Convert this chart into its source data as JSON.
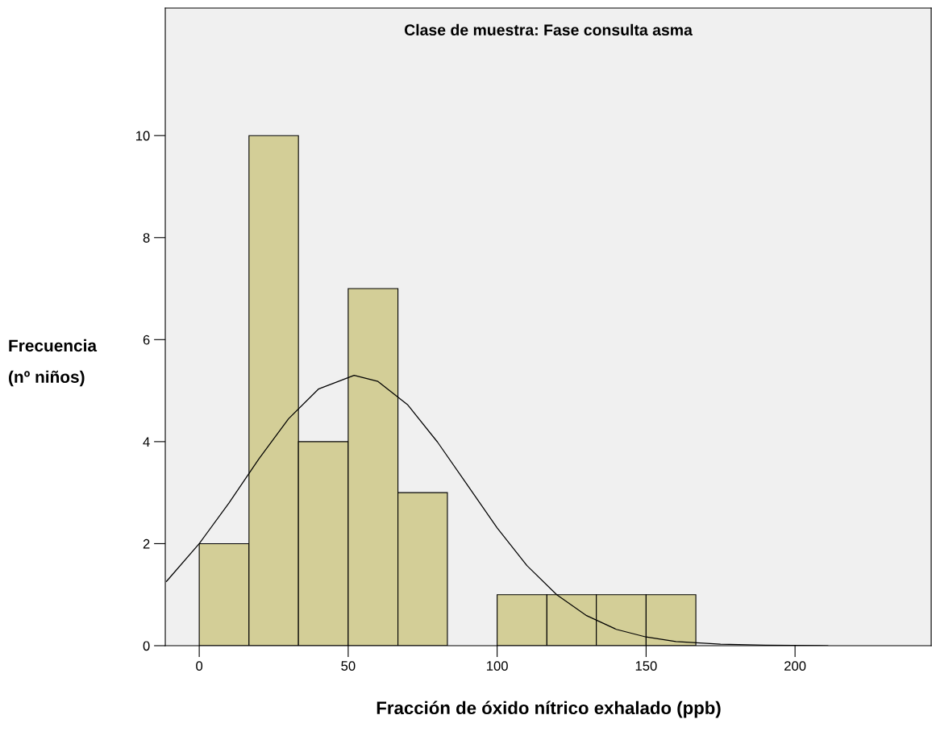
{
  "chart_data": {
    "type": "histogram",
    "title": "Clase de muestra: Fase consulta asma",
    "xlabel": "Fracción de óxido nítrico exhalado (ppb)",
    "ylabel": "Frecuencia\n\n(nº niños)",
    "xlim": [
      -11.4,
      245.7
    ],
    "ylim": [
      0,
      12.5
    ],
    "xticks": [
      0,
      50,
      100,
      150,
      200
    ],
    "yticks": [
      0,
      2,
      4,
      6,
      8,
      10
    ],
    "grid": false,
    "legend": false,
    "series": [
      {
        "type": "histogram",
        "color": "#d3ce97",
        "bins": [
          0,
          16.7,
          33.3,
          50,
          66.7,
          83.3,
          100,
          116.7,
          133.3,
          150,
          166.7
        ],
        "values": [
          2,
          10,
          4,
          7,
          3,
          0,
          1,
          1,
          1,
          1
        ]
      },
      {
        "type": "line",
        "color": "#000000",
        "x": [
          -11,
          0,
          10,
          20,
          30,
          40,
          52,
          60,
          70,
          80,
          90,
          100,
          110,
          120,
          130,
          140,
          150,
          160,
          175,
          190,
          211
        ],
        "values": [
          1.26,
          2.0,
          2.8,
          3.66,
          4.45,
          5.03,
          5.3,
          5.18,
          4.72,
          3.99,
          3.15,
          2.31,
          1.57,
          1.0,
          0.59,
          0.32,
          0.17,
          0.08,
          0.03,
          0.01,
          0.0
        ]
      }
    ]
  }
}
